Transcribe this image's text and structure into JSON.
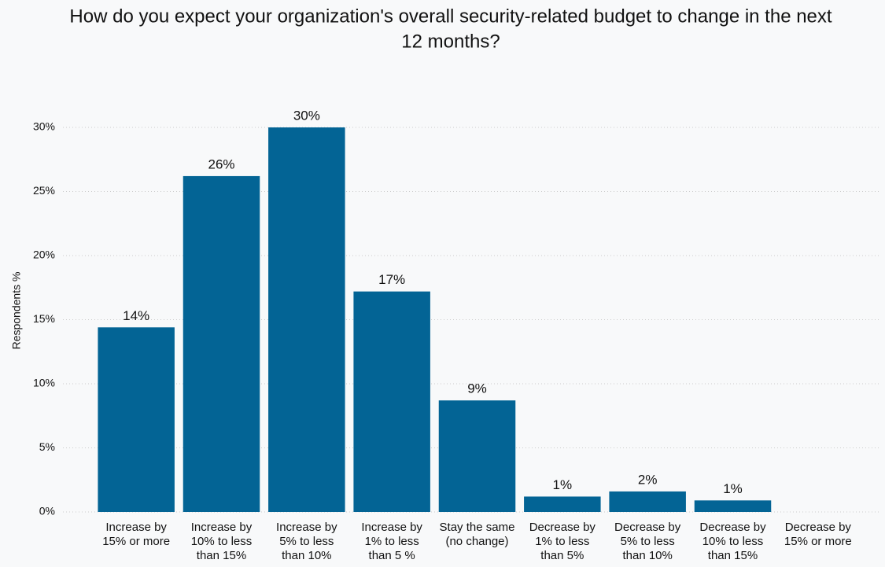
{
  "chart_data": {
    "type": "bar",
    "title_lines": [
      "How do you expect your organization's overall security-related budget to change in the next",
      "12 months?"
    ],
    "y_label": "Respondents %",
    "categories": [
      "Increase by 15% or more",
      "Increase by 10% to less than 15%",
      "Increase by 5% to less than 10%",
      "Increase by 1% to less than 5 %",
      "Stay the same (no change)",
      "Decrease by 1% to less than 5%",
      "Decrease by 5% to less than 10%",
      "Decrease by 10% to less than 15%",
      "Decrease by 15% or more"
    ],
    "values": [
      14.4,
      26.2,
      30,
      17.2,
      8.7,
      1.2,
      1.6,
      0.9,
      0
    ],
    "value_labels": [
      "14%",
      "26%",
      "30%",
      "17%",
      "9%",
      "1%",
      "2%",
      "1%",
      null
    ],
    "color": "#036495",
    "ylim": [
      0,
      30
    ],
    "yticks": [
      {
        "value": 0,
        "label": "0%"
      },
      {
        "value": 5,
        "label": "5%"
      },
      {
        "value": 10,
        "label": "10%"
      },
      {
        "value": 15,
        "label": "15%"
      },
      {
        "value": 20,
        "label": "20%"
      },
      {
        "value": 25,
        "label": "25%"
      },
      {
        "value": 30,
        "label": "30%"
      }
    ],
    "grid": true
  }
}
